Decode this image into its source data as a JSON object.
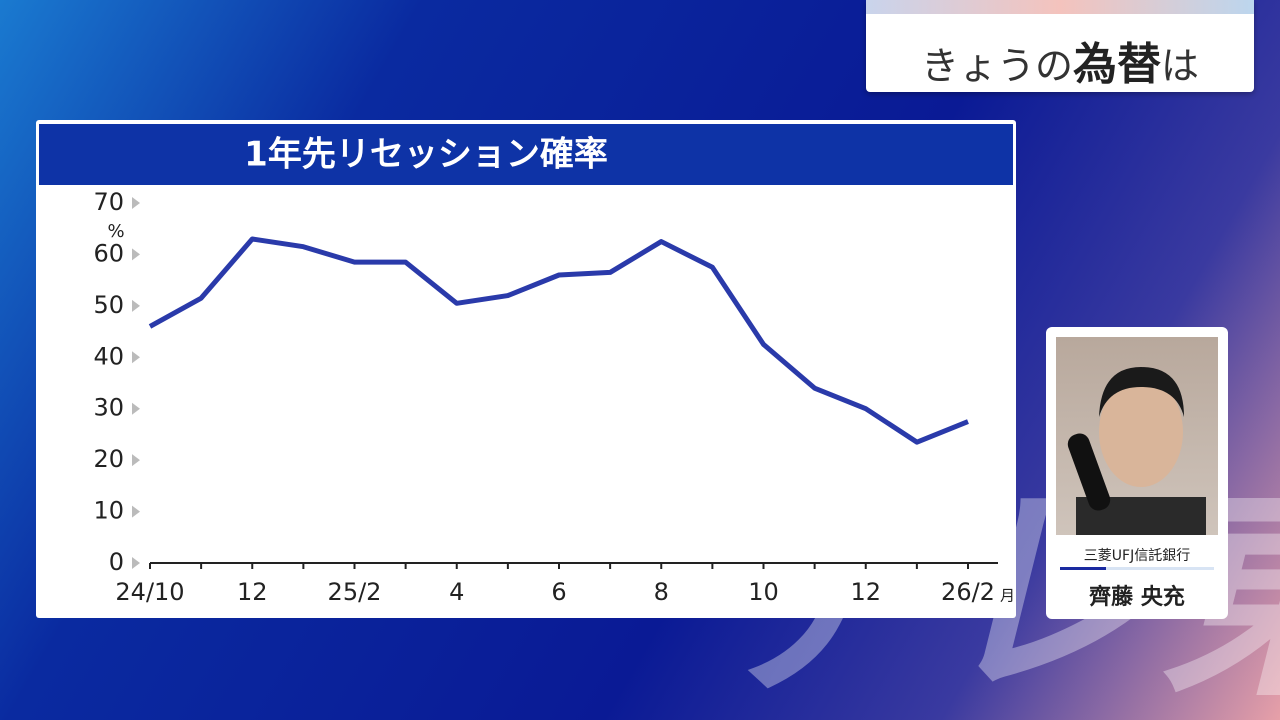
{
  "header": {
    "title_parts": [
      "きょうの",
      "為替",
      "は"
    ]
  },
  "chart_data": {
    "type": "line",
    "title": "1年先リセッション確率",
    "categories": [
      "24/10",
      null,
      "12",
      null,
      "25/2",
      null,
      "4",
      null,
      "6",
      null,
      "8",
      null,
      "10",
      null,
      "12",
      null,
      "26/2"
    ],
    "x_unit": "月",
    "y_unit": "%",
    "series": [
      {
        "name": "リセッション確率",
        "color": "#2a3aaa",
        "values": [
          46,
          51.5,
          63,
          61.5,
          58.5,
          58.5,
          50.5,
          52,
          56,
          56.5,
          62.5,
          57.5,
          42.5,
          34,
          30,
          23.5,
          27.5
        ]
      }
    ],
    "ylim": [
      0,
      70
    ],
    "yticks": [
      0,
      10,
      20,
      30,
      40,
      50,
      60,
      70
    ]
  },
  "profile": {
    "organization": "三菱UFJ信託銀行",
    "name": "齊藤 央充"
  },
  "watermark": "テレ東"
}
